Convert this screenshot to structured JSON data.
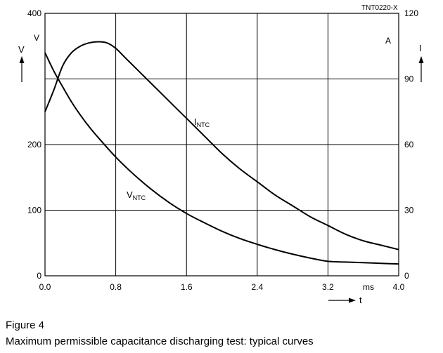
{
  "figure": {
    "label": "Figure 4",
    "caption": "Maximum permissible capacitance discharging test: typical curves",
    "reference_code": "TNT0220-X"
  },
  "chart_data": {
    "type": "line",
    "title": "",
    "grid": true,
    "x": {
      "label": "t",
      "unit": "ms",
      "range": [
        0,
        4.0
      ],
      "ticks": [
        0.0,
        0.8,
        1.6,
        2.4,
        3.2,
        4.0
      ],
      "tick_labels": [
        "0.0",
        "0.8",
        "1.6",
        "2.4",
        "3.2",
        "4.0"
      ]
    },
    "y_left": {
      "label": "V",
      "unit": "V",
      "range": [
        0,
        400
      ],
      "ticks": [
        0,
        100,
        200,
        400
      ],
      "tick_labels": [
        "0",
        "100",
        "200",
        "400"
      ]
    },
    "y_right": {
      "label": "I",
      "unit": "A",
      "range": [
        0,
        120
      ],
      "ticks": [
        0,
        30,
        60,
        90,
        120
      ],
      "tick_labels": [
        "0",
        "30",
        "60",
        "90",
        "120"
      ]
    },
    "series": [
      {
        "name": "V",
        "name_subscript": "NTC",
        "axis": "left",
        "x": [
          0.0,
          0.1,
          0.2,
          0.3,
          0.4,
          0.5,
          0.6,
          0.8,
          1.0,
          1.2,
          1.4,
          1.6,
          1.8,
          2.0,
          2.2,
          2.4,
          2.6,
          2.8,
          3.0,
          3.2,
          3.4,
          3.6,
          3.8,
          4.0
        ],
        "values": [
          340,
          312,
          288,
          265,
          245,
          227,
          211,
          181,
          155,
          132,
          112,
          95,
          81,
          68,
          57,
          48,
          40,
          33,
          27,
          22,
          21,
          20,
          19,
          18
        ]
      },
      {
        "name": "I",
        "name_subscript": "NTC",
        "axis": "right",
        "x": [
          0.0,
          0.1,
          0.2,
          0.3,
          0.4,
          0.5,
          0.6,
          0.7,
          0.8,
          0.9,
          1.0,
          1.2,
          1.4,
          1.6,
          1.8,
          2.0,
          2.2,
          2.4,
          2.6,
          2.8,
          3.0,
          3.2,
          3.4,
          3.6,
          3.8,
          4.0
        ],
        "values": [
          75,
          85,
          96,
          102,
          105,
          106.5,
          107,
          106.5,
          104,
          100,
          96,
          88,
          80,
          72,
          64,
          56,
          49,
          43,
          37,
          32,
          27,
          23,
          19,
          16,
          14,
          12
        ]
      }
    ]
  }
}
